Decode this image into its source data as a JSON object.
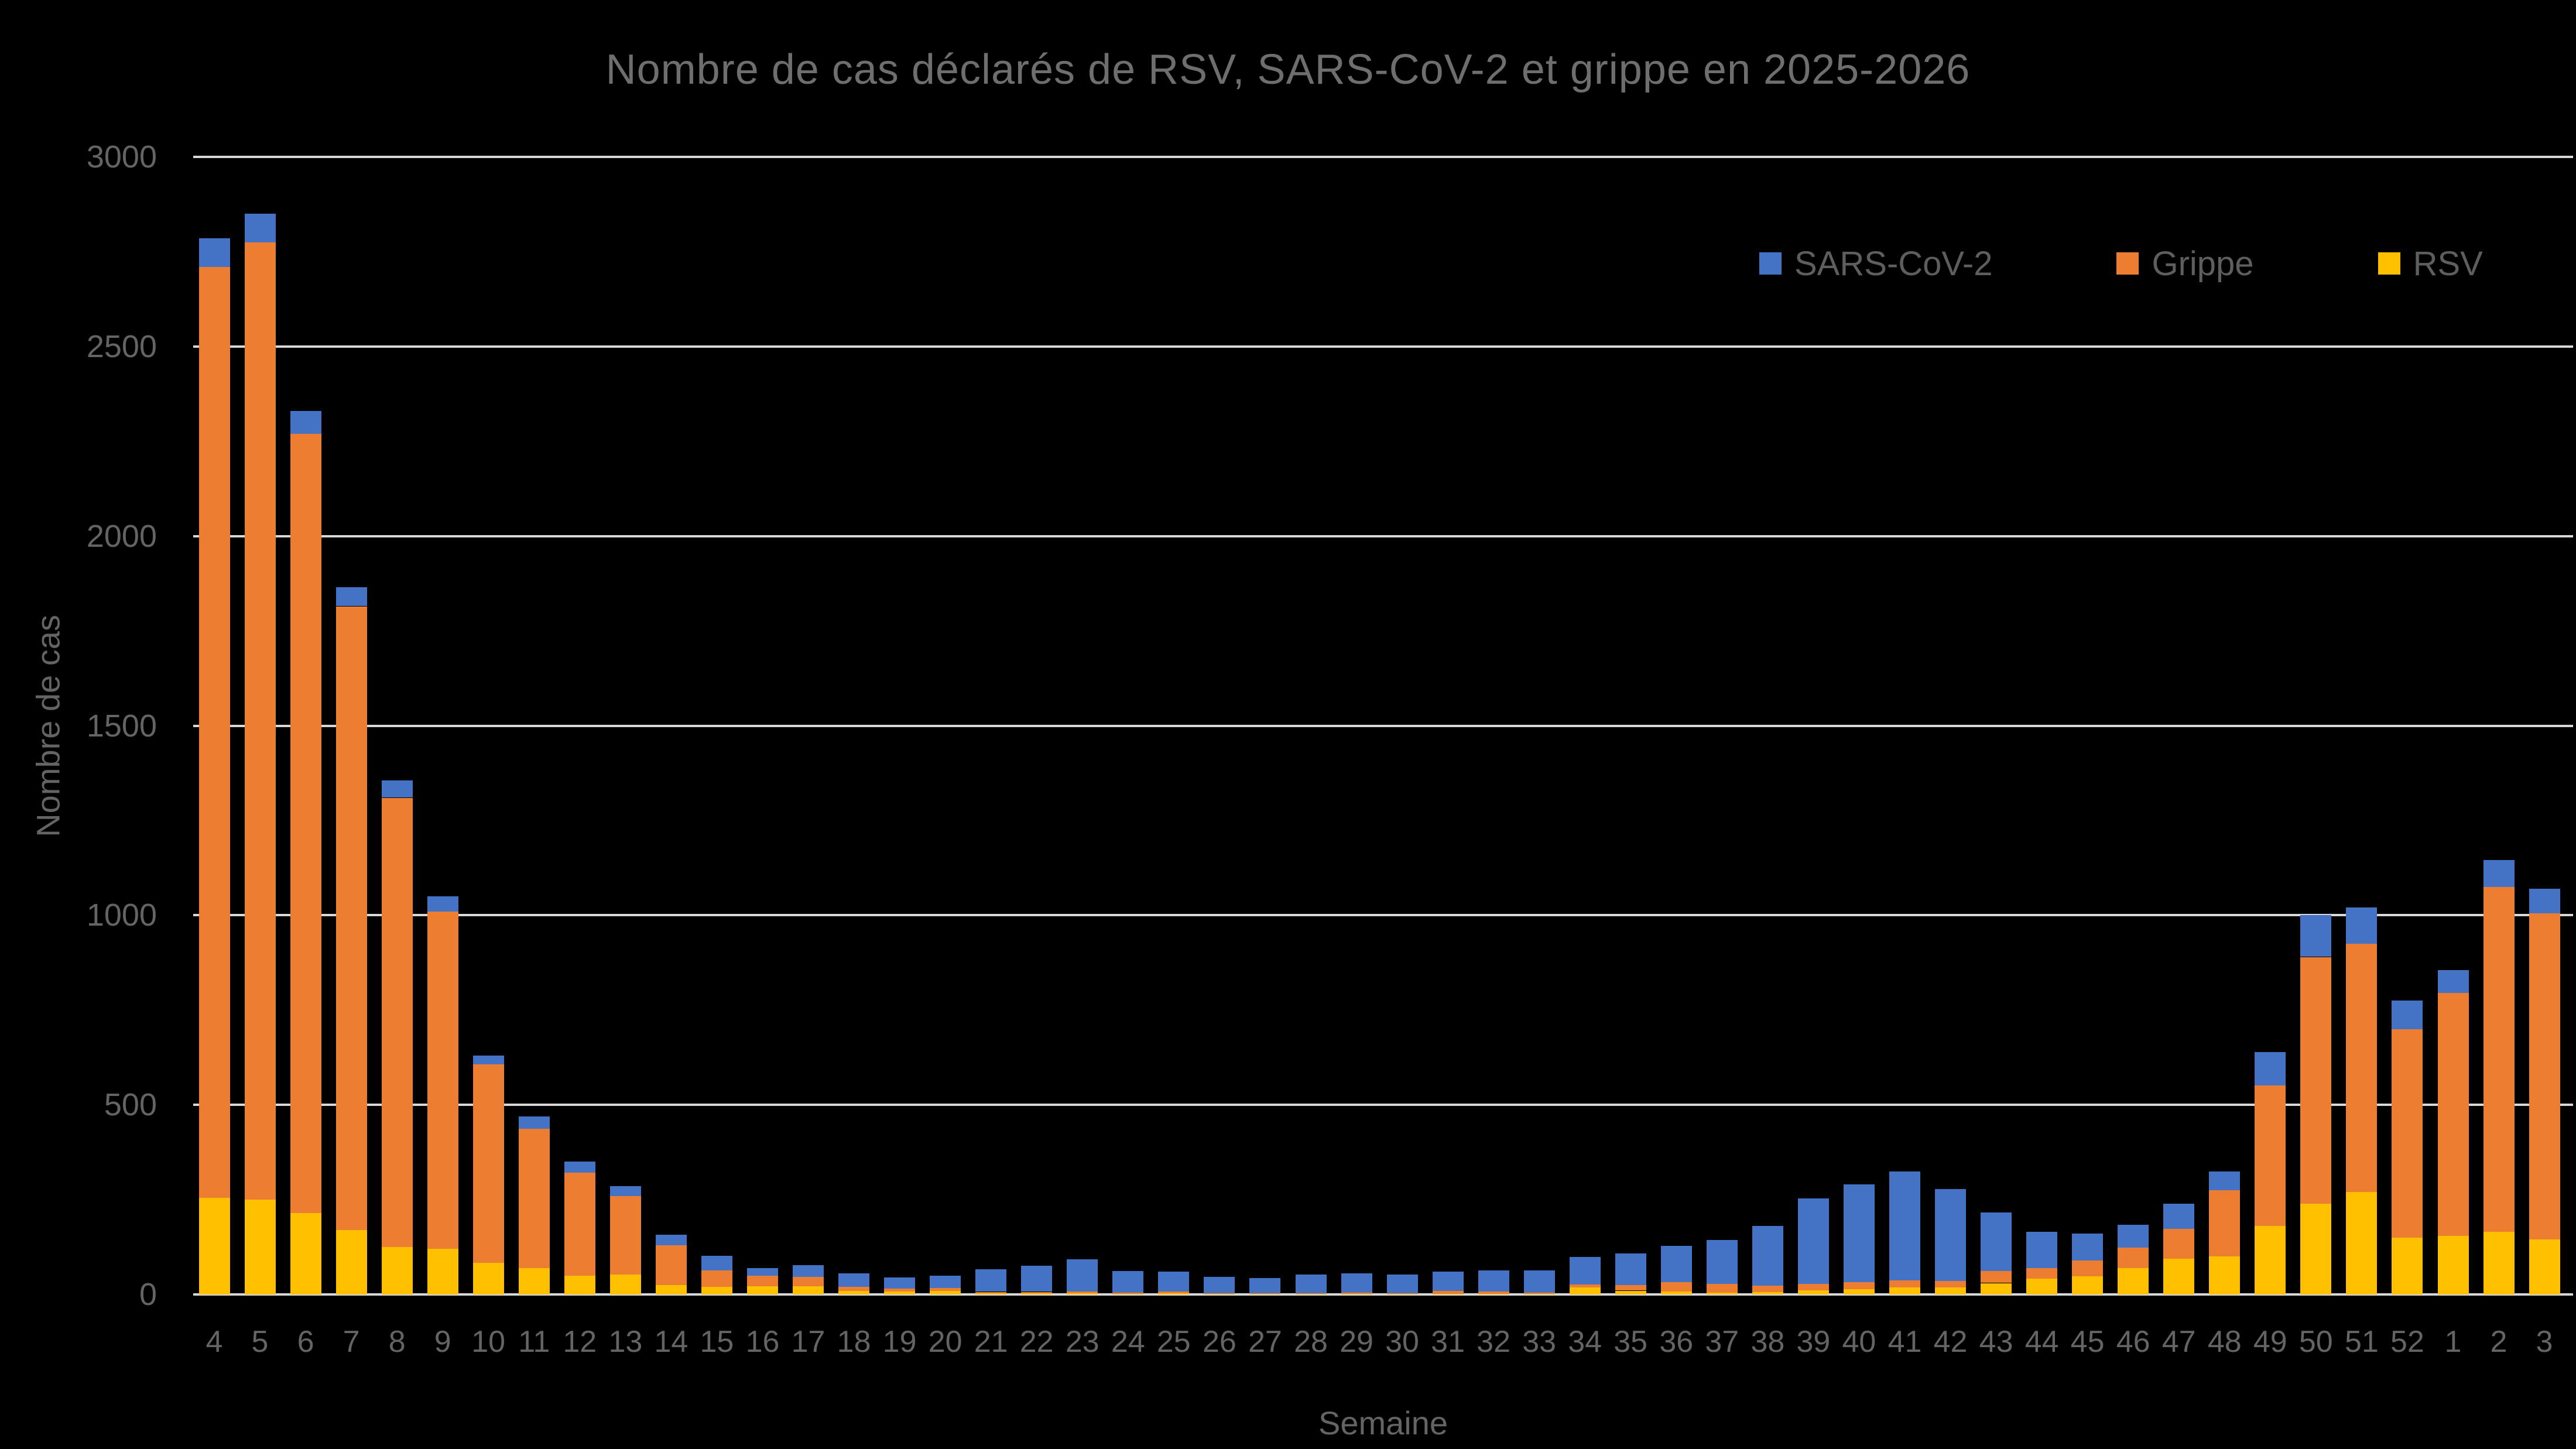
{
  "header": {
    "title": "Nombre de cas déclarés de RSV, SARS-CoV-2 et grippe en 2025-2026"
  },
  "colors": {
    "background": "#000000",
    "gridline": "#D8D8D8",
    "title_text": "#6E6E6E",
    "axis_text": "#646464",
    "sars_cov_2": "#4472C4",
    "grippe": "#ED7D31",
    "rsv": "#FFC000"
  },
  "legend": {
    "items": [
      {
        "label": "SARS-CoV-2",
        "color": "#4472C4"
      },
      {
        "label": "Grippe",
        "color": "#ED7D31"
      },
      {
        "label": "RSV",
        "color": "#FFC000"
      }
    ]
  },
  "chart_data": {
    "type": "bar",
    "stacked": true,
    "title": "Nombre de cas déclarés de RSV, SARS-CoV-2 et grippe en 2025-2026",
    "xlabel": "Semaine",
    "ylabel": "Nombre de cas",
    "ylim": [
      0,
      3000
    ],
    "y_ticks": [
      0,
      500,
      1000,
      1500,
      2000,
      2500,
      3000
    ],
    "grid": true,
    "legend_position": "top-right",
    "categories": [
      "4",
      "5",
      "6",
      "7",
      "8",
      "9",
      "10",
      "11",
      "12",
      "13",
      "14",
      "15",
      "16",
      "17",
      "18",
      "19",
      "20",
      "21",
      "22",
      "23",
      "24",
      "25",
      "26",
      "27",
      "28",
      "29",
      "30",
      "31",
      "32",
      "33",
      "34",
      "35",
      "36",
      "37",
      "38",
      "39",
      "40",
      "41",
      "42",
      "43",
      "44",
      "45",
      "46",
      "47",
      "48",
      "49",
      "50",
      "51",
      "52",
      "1",
      "2",
      "3"
    ],
    "series": [
      {
        "name": "RSV",
        "color": "#FFC000",
        "values": [
          255,
          250,
          215,
          170,
          125,
          120,
          83,
          70,
          50,
          52,
          25,
          20,
          22,
          22,
          9,
          8,
          9,
          3,
          3,
          3,
          1,
          3,
          1,
          1,
          1,
          1,
          1,
          2,
          2,
          1,
          18,
          10,
          8,
          5,
          6,
          11,
          14,
          18,
          18,
          30,
          42,
          48,
          70,
          95,
          100,
          180,
          240,
          270,
          150,
          155,
          165,
          145
        ]
      },
      {
        "name": "Grippe",
        "color": "#ED7D31",
        "values": [
          2455,
          2525,
          2055,
          1645,
          1185,
          890,
          524,
          367,
          271,
          208,
          105,
          43,
          27,
          25,
          11,
          7,
          8,
          4,
          4,
          5,
          3,
          5,
          2,
          2,
          2,
          3,
          2,
          7,
          6,
          3,
          8,
          15,
          24,
          23,
          17,
          17,
          18,
          19,
          18,
          32,
          27,
          42,
          53,
          78,
          175,
          372,
          650,
          655,
          550,
          640,
          910,
          860
        ]
      },
      {
        "name": "SARS-CoV-2",
        "color": "#4472C4",
        "values": [
          75,
          75,
          60,
          50,
          45,
          40,
          23,
          33,
          29,
          25,
          28,
          39,
          20,
          31,
          36,
          30,
          33,
          60,
          68,
          84,
          58,
          52,
          43,
          41,
          49,
          52,
          49,
          51,
          56,
          60,
          73,
          83,
          96,
          115,
          157,
          225,
          258,
          288,
          242,
          154,
          97,
          70,
          61,
          66,
          50,
          88,
          110,
          95,
          75,
          60,
          70,
          65
        ]
      }
    ]
  }
}
